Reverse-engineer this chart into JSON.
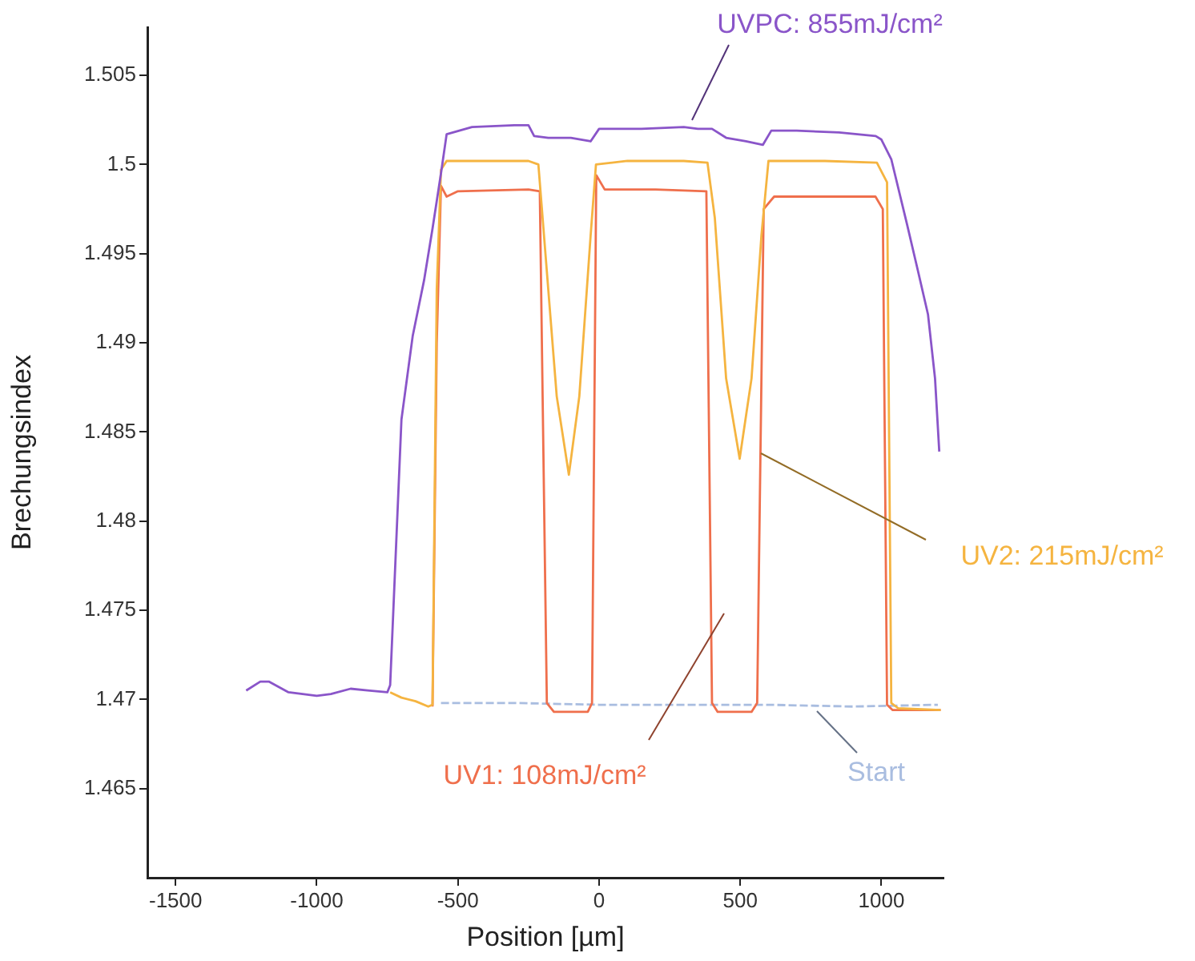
{
  "chart_data": {
    "type": "line",
    "xlabel": "Position [µm]",
    "ylabel": "Brechungsindex",
    "xlim": [
      -1600,
      1220
    ],
    "xticks": [
      -1500,
      -1000,
      -500,
      0,
      500,
      1000
    ],
    "ylim": [
      1.46,
      1.5077
    ],
    "yticks": [
      1.465,
      1.47,
      1.475,
      1.48,
      1.485,
      1.49,
      1.495,
      1.5,
      1.505
    ],
    "grid": false,
    "legend": false,
    "marker": "none",
    "series": [
      {
        "name": "UVPC: 855mJ/cm²",
        "color": "#8a55c9",
        "line_style": "solid",
        "x": [
          -1250,
          -1200,
          -1170,
          -1100,
          -1000,
          -950,
          -880,
          -820,
          -750,
          -740,
          -700,
          -660,
          -620,
          -590,
          -560,
          -540,
          -450,
          -300,
          -250,
          -230,
          -180,
          -100,
          -30,
          0,
          50,
          150,
          300,
          350,
          400,
          450,
          520,
          580,
          610,
          700,
          850,
          980,
          1000,
          1035,
          1090,
          1130,
          1165,
          1190,
          1205
        ],
        "values": [
          1.4705,
          1.471,
          1.471,
          1.4704,
          1.4702,
          1.4703,
          1.4706,
          1.4705,
          1.4704,
          1.4708,
          1.4857,
          1.4904,
          1.4935,
          1.4964,
          1.4995,
          1.5017,
          1.5021,
          1.5022,
          1.5022,
          1.5016,
          1.5015,
          1.5015,
          1.5013,
          1.502,
          1.502,
          1.502,
          1.5021,
          1.502,
          1.502,
          1.5015,
          1.5013,
          1.5011,
          1.5019,
          1.5019,
          1.5018,
          1.5016,
          1.5014,
          1.5003,
          1.4967,
          1.494,
          1.4916,
          1.488,
          1.4839
        ]
      },
      {
        "name": "UV2: 215mJ/cm²",
        "color": "#f5b440",
        "line_style": "solid",
        "x": [
          -740,
          -700,
          -650,
          -605,
          -590,
          -575,
          -560,
          -540,
          -400,
          -250,
          -215,
          -190,
          -150,
          -107,
          -70,
          -30,
          -11,
          100,
          300,
          384,
          410,
          450,
          498,
          540,
          575,
          600,
          800,
          984,
          1020,
          1035,
          1060,
          1210
        ],
        "values": [
          1.4704,
          1.4701,
          1.4699,
          1.4696,
          1.4697,
          1.493,
          1.4997,
          1.5002,
          1.5002,
          1.5002,
          1.5,
          1.495,
          1.487,
          1.4826,
          1.487,
          1.496,
          1.5,
          1.5002,
          1.5002,
          1.5001,
          1.497,
          1.488,
          1.4835,
          1.488,
          1.496,
          1.5002,
          1.5002,
          1.5001,
          1.499,
          1.4698,
          1.4695,
          1.4694
        ]
      },
      {
        "name": "UV1: 108mJ/cm²",
        "color": "#ef6f4c",
        "line_style": "solid",
        "x": [
          -590,
          -575,
          -560,
          -540,
          -500,
          -250,
          -210,
          -185,
          -160,
          -40,
          -25,
          -10,
          20,
          200,
          380,
          400,
          420,
          540,
          560,
          583,
          620,
          800,
          979,
          1005,
          1020,
          1040,
          1210
        ],
        "values": [
          1.4696,
          1.49,
          1.4988,
          1.4982,
          1.4985,
          1.4986,
          1.4985,
          1.4698,
          1.4693,
          1.4693,
          1.4698,
          1.4994,
          1.4986,
          1.4986,
          1.4985,
          1.4698,
          1.4693,
          1.4693,
          1.4698,
          1.4975,
          1.4982,
          1.4982,
          1.4982,
          1.4975,
          1.4697,
          1.4694,
          1.4694
        ]
      },
      {
        "name": "Start",
        "color": "#a9bde0",
        "line_style": "dashed",
        "x": [
          -560,
          -300,
          0,
          300,
          600,
          900,
          1200
        ],
        "values": [
          1.4698,
          1.4698,
          1.4697,
          1.4697,
          1.4697,
          1.4696,
          1.4697
        ]
      }
    ]
  }
}
